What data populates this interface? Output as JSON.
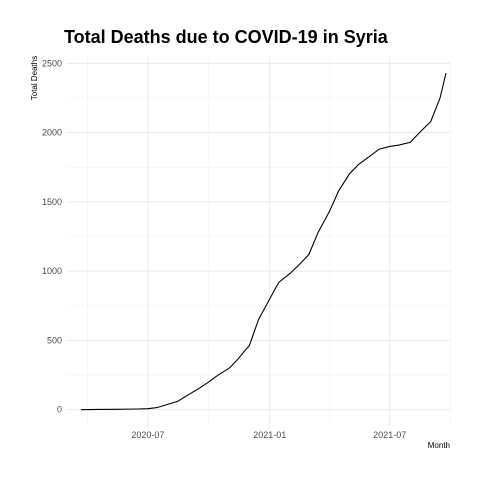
{
  "chart_data": {
    "type": "line",
    "title": "Total Deaths due to COVID-19 in Syria",
    "xlabel": "Month",
    "ylabel": "Total Deaths",
    "x_is_date": true,
    "xlim": [
      "2020-03-01",
      "2021-09-30"
    ],
    "ylim": [
      -125,
      2560
    ],
    "x_ticks": [
      {
        "date": "2020-07-01",
        "label": "2020-07"
      },
      {
        "date": "2021-01-01",
        "label": "2021-01"
      },
      {
        "date": "2021-07-01",
        "label": "2021-07"
      }
    ],
    "x_minor_ticks": [
      "2020-04-01",
      "2020-10-01",
      "2021-04-01",
      "2021-10-01"
    ],
    "y_ticks": [
      0,
      500,
      1000,
      1500,
      2000,
      2500
    ],
    "y_minor_ticks": [
      250,
      750,
      1250,
      1750,
      2250
    ],
    "grid": true,
    "series": [
      {
        "x": [
          "2020-03-22",
          "2020-04-15",
          "2020-05-15",
          "2020-06-01",
          "2020-06-15",
          "2020-07-01",
          "2020-07-15",
          "2020-08-01",
          "2020-08-15",
          "2020-09-01",
          "2020-09-15",
          "2020-10-01",
          "2020-10-15",
          "2020-11-01",
          "2020-11-15",
          "2020-11-25",
          "2020-12-01",
          "2020-12-15",
          "2021-01-01",
          "2021-01-10",
          "2021-01-15",
          "2021-02-01",
          "2021-02-15",
          "2021-03-01",
          "2021-03-15",
          "2021-04-01",
          "2021-04-15",
          "2021-05-01",
          "2021-05-15",
          "2021-06-01",
          "2021-06-15",
          "2021-07-01",
          "2021-07-15",
          "2021-08-01",
          "2021-08-15",
          "2021-09-01",
          "2021-09-15",
          "2021-09-24"
        ],
        "y": [
          0,
          2,
          3,
          4,
          5,
          7,
          15,
          40,
          60,
          110,
          150,
          200,
          250,
          300,
          370,
          430,
          460,
          650,
          800,
          880,
          920,
          985,
          1050,
          1120,
          1280,
          1430,
          1580,
          1700,
          1770,
          1830,
          1880,
          1900,
          1910,
          1930,
          2000,
          2080,
          2250,
          2430
        ]
      }
    ]
  }
}
